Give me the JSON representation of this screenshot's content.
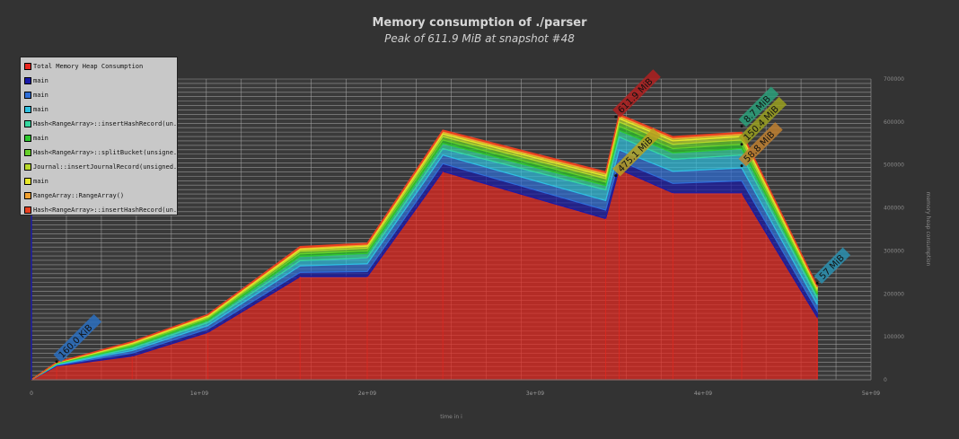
{
  "chart_data": {
    "type": "area",
    "title": "Memory consumption of ./parser",
    "subtitle": "Peak of 611.9 MiB at snapshot #48",
    "xlabel": "time in i",
    "ylabel": "memory heap consumption",
    "xlim": [
      0,
      5000000000
    ],
    "ylim": [
      0,
      700000000
    ],
    "x_ticks": [
      "0",
      "1e+09",
      "2e+09",
      "3e+09",
      "4e+09",
      "5e+09"
    ],
    "y_ticks": [
      "0",
      "100000",
      "200000",
      "300000",
      "400000",
      "500000",
      "600000",
      "700000"
    ],
    "grid": true,
    "legend_position": "top-left",
    "series": [
      {
        "name": "Total Memory Heap Consumption",
        "color": "#e8261e"
      },
      {
        "name": "main",
        "color": "#1a1aa8"
      },
      {
        "name": "main",
        "color": "#2f6fd8"
      },
      {
        "name": "main",
        "color": "#2fc0e0"
      },
      {
        "name": "Hash<RangeArray>::insertHashRecord(un...",
        "color": "#35d7a0"
      },
      {
        "name": "main",
        "color": "#2ec82e"
      },
      {
        "name": "Hash<RangeArray>::splitBucket(unsigne...",
        "color": "#66d02a"
      },
      {
        "name": "Journal::insertJournalRecord(unsigned...",
        "color": "#b8d82a"
      },
      {
        "name": "main",
        "color": "#e8e82a"
      },
      {
        "name": "RangeArray::RangeArray()",
        "color": "#f0a030"
      },
      {
        "name": "Hash<RangeArray>::insertHashRecord(un...",
        "color": "#e84020"
      }
    ],
    "x": [
      0,
      150000000,
      600000000,
      1050000000,
      1600000000,
      2000000000,
      2450000000,
      3420000000,
      3500000000,
      3820000000,
      4230000000,
      4680000000
    ],
    "stack": [
      [
        0,
        32000000,
        55000000,
        110000000,
        240000000,
        240000000,
        485000000,
        375000000,
        490000000,
        435000000,
        435000000,
        145000000
      ],
      [
        0,
        1500000,
        7000000,
        8000000,
        10000000,
        12000000,
        18000000,
        20000000,
        20000000,
        22000000,
        28000000,
        15000000
      ],
      [
        0,
        1500000,
        6000000,
        8000000,
        15000000,
        18000000,
        20000000,
        22000000,
        25000000,
        28000000,
        30000000,
        15000000
      ],
      [
        0,
        1500000,
        5000000,
        7000000,
        12000000,
        14000000,
        15000000,
        25000000,
        30000000,
        28000000,
        30000000,
        15000000
      ],
      [
        0,
        1000000,
        4000000,
        5000000,
        10000000,
        10000000,
        12000000,
        10000000,
        15000000,
        15000000,
        15000000,
        8000000
      ],
      [
        0,
        800000,
        3000000,
        4000000,
        6000000,
        6000000,
        8000000,
        8000000,
        10000000,
        10000000,
        10000000,
        5000000
      ],
      [
        0,
        700000,
        3000000,
        3000000,
        6000000,
        6000000,
        8000000,
        8000000,
        10000000,
        10000000,
        10000000,
        5000000
      ],
      [
        0,
        600000,
        2000000,
        3000000,
        4000000,
        5000000,
        6000000,
        6000000,
        8000000,
        8000000,
        8000000,
        4000000
      ],
      [
        0,
        500000,
        2000000,
        2000000,
        3000000,
        3000000,
        4000000,
        5000000,
        5000000,
        5000000,
        5000000,
        3000000
      ],
      [
        0,
        300000,
        1000000,
        1000000,
        2000000,
        2000000,
        3000000,
        3000000,
        3000000,
        3000000,
        3000000,
        2000000
      ],
      [
        0,
        300000,
        1000000,
        1000000,
        2000000,
        2000000,
        2000000,
        2000000,
        2000000,
        2000000,
        2000000,
        1000000
      ]
    ],
    "annotations": [
      {
        "text": "160.0 KiB",
        "x": 150000000,
        "y": 42000000,
        "color": "#2a6fc0"
      },
      {
        "text": "611.9 MiB",
        "x": 3480000000,
        "y": 611900000,
        "color": "#b02020"
      },
      {
        "text": "475.1 MiB",
        "x": 3480000000,
        "y": 475100000,
        "color": "#b8a020"
      },
      {
        "text": "8.7 MiB",
        "x": 4230000000,
        "y": 590000000,
        "color": "#2aa07a"
      },
      {
        "text": "150.4 MiB",
        "x": 4230000000,
        "y": 548000000,
        "color": "#9aa020"
      },
      {
        "text": "58.8 MiB",
        "x": 4230000000,
        "y": 498000000,
        "color": "#c08030"
      },
      {
        "text": "57 MiB",
        "x": 4680000000,
        "y": 225000000,
        "color": "#2a90b0"
      }
    ]
  }
}
